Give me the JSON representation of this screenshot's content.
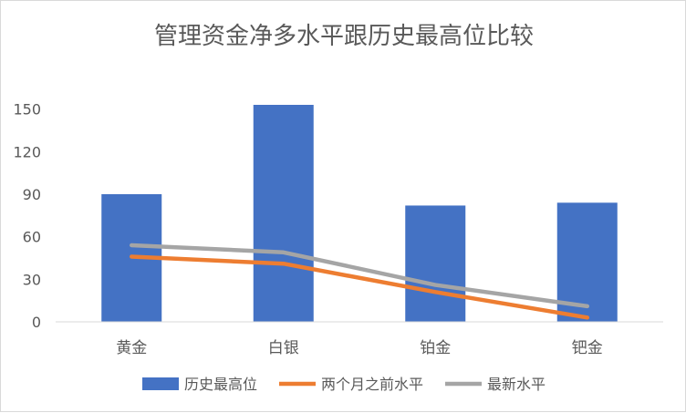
{
  "chart_data": {
    "type": "bar",
    "title": "管理资金净多水平跟历史最高位比较",
    "categories": [
      "黄金",
      "白银",
      "铂金",
      "钯金"
    ],
    "yticks": [
      0,
      30,
      60,
      90,
      120,
      150
    ],
    "ylim": [
      0,
      180
    ],
    "grid": false,
    "legend_position": "bottom",
    "series": [
      {
        "name": "历史最高位",
        "kind": "bar",
        "color": "#4472c4",
        "values": [
          90,
          153,
          82,
          84
        ]
      },
      {
        "name": "两个月之前水平",
        "kind": "line",
        "color": "#ed7d31",
        "values": [
          46,
          41,
          21,
          3
        ]
      },
      {
        "name": "最新水平",
        "kind": "line",
        "color": "#a5a5a5",
        "values": [
          54,
          49,
          26,
          11
        ]
      }
    ]
  }
}
